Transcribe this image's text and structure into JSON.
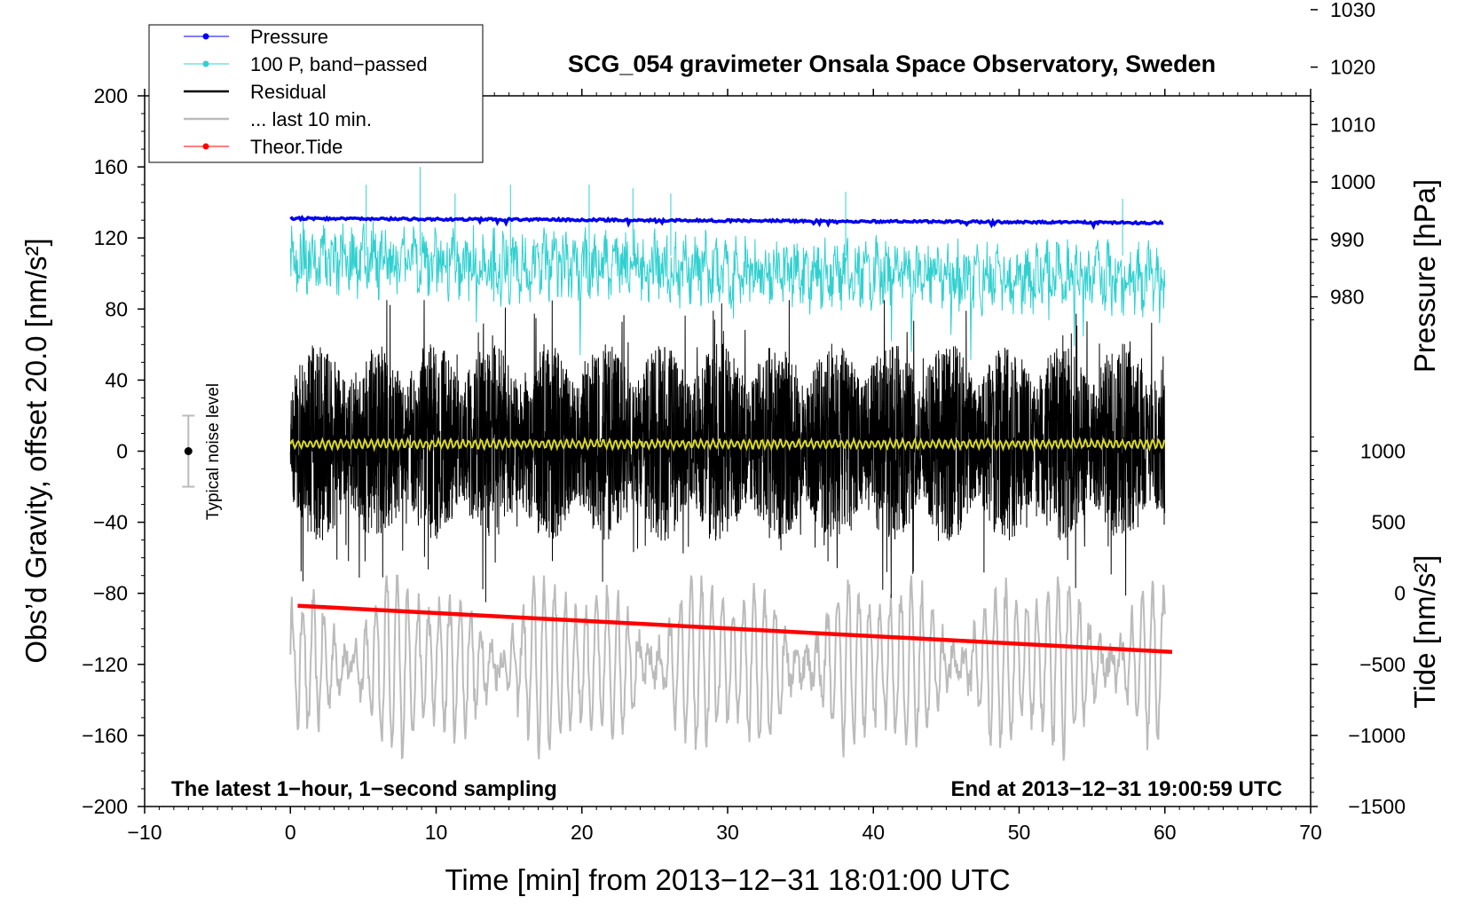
{
  "chart_data": {
    "type": "line",
    "title": "SCG_054 gravimeter Onsala Space Observatory, Sweden",
    "xlabel": "Time [min] from 2013−12−31 18:01:00 UTC",
    "ylabel_left": "Obs’d Gravity, offset 20.0 [nm/s²]",
    "ylabel_right_pressure": "Pressure [hPa]",
    "ylabel_right_tide": "Tide [nm/s²]",
    "xlim": [
      -10,
      70
    ],
    "ylim_left": [
      -200,
      200
    ],
    "x_ticks": [
      "−10",
      "0",
      "10",
      "20",
      "30",
      "40",
      "50",
      "60",
      "70"
    ],
    "y_ticks_left": [
      "200",
      "160",
      "120",
      "80",
      "40",
      "0",
      "−40",
      "−80",
      "−120",
      "−160",
      "−200"
    ],
    "pressure_ticks": [
      "1030",
      "1020",
      "1010",
      "1000",
      "990",
      "980"
    ],
    "tide_ticks": [
      "1000",
      "500",
      "0",
      "−500",
      "−1000",
      "−1500"
    ],
    "pressure_axis": {
      "hpa_at_top": 1015.0,
      "hpa_per_left_unit": 0.3093
    },
    "tide_axis": {
      "tide_at_left_minus200": -1500,
      "tide_per_left_unit": 12.5
    },
    "legend": [
      {
        "name": "Pressure",
        "color": "#0000ee",
        "marker": true
      },
      {
        "name": "100 P, band−passed",
        "color": "#30d0d0",
        "marker": true
      },
      {
        "name": "Residual",
        "color": "#000000",
        "marker": false
      },
      {
        "name": "... last 10 min.",
        "color": "#bbbbbb",
        "marker": false
      },
      {
        "name": "Theor.Tide",
        "color": "#ff0000",
        "marker": true
      }
    ],
    "series": [
      {
        "name": "Pressure",
        "color": "#0000ee",
        "x_range": [
          0,
          60
        ],
        "start": 131,
        "end": 128.5,
        "noise": 0.6
      },
      {
        "name": "100 P, band−passed",
        "color": "#30d0d0",
        "x_range": [
          0,
          60
        ],
        "start": 108,
        "end": 96,
        "noise": 12,
        "spikes": [
          [
            5.2,
            150
          ],
          [
            8.9,
            160
          ],
          [
            11.3,
            145
          ],
          [
            15.1,
            150
          ],
          [
            20.5,
            150
          ],
          [
            23.5,
            148
          ],
          [
            26.1,
            145
          ],
          [
            38.1,
            146
          ],
          [
            57.1,
            142
          ]
        ]
      },
      {
        "name": "Residual",
        "color": "#000000",
        "x_range": [
          0,
          60
        ],
        "center": 5,
        "amplitude": 70
      },
      {
        "name": "... last 10 min.",
        "color": "#bbbbbb",
        "x_range": [
          0,
          60
        ],
        "center": -120,
        "amplitude": 55
      },
      {
        "name": "Theor.Tide",
        "color": "#ff0000",
        "x_range": [
          0.5,
          60.5
        ],
        "start": -87,
        "end": -113
      },
      {
        "name": "Residual smoothed",
        "color": "#d8d820",
        "x_range": [
          0,
          60
        ],
        "center": 4,
        "amplitude": 2
      }
    ],
    "noise_bar": {
      "label": "Typical noise level",
      "x": -7,
      "y": 0,
      "range": [
        -20,
        20
      ]
    },
    "annotation_left": "The latest 1−hour, 1−second sampling",
    "annotation_right": "End at 2013−12−31 19:00:59 UTC"
  }
}
